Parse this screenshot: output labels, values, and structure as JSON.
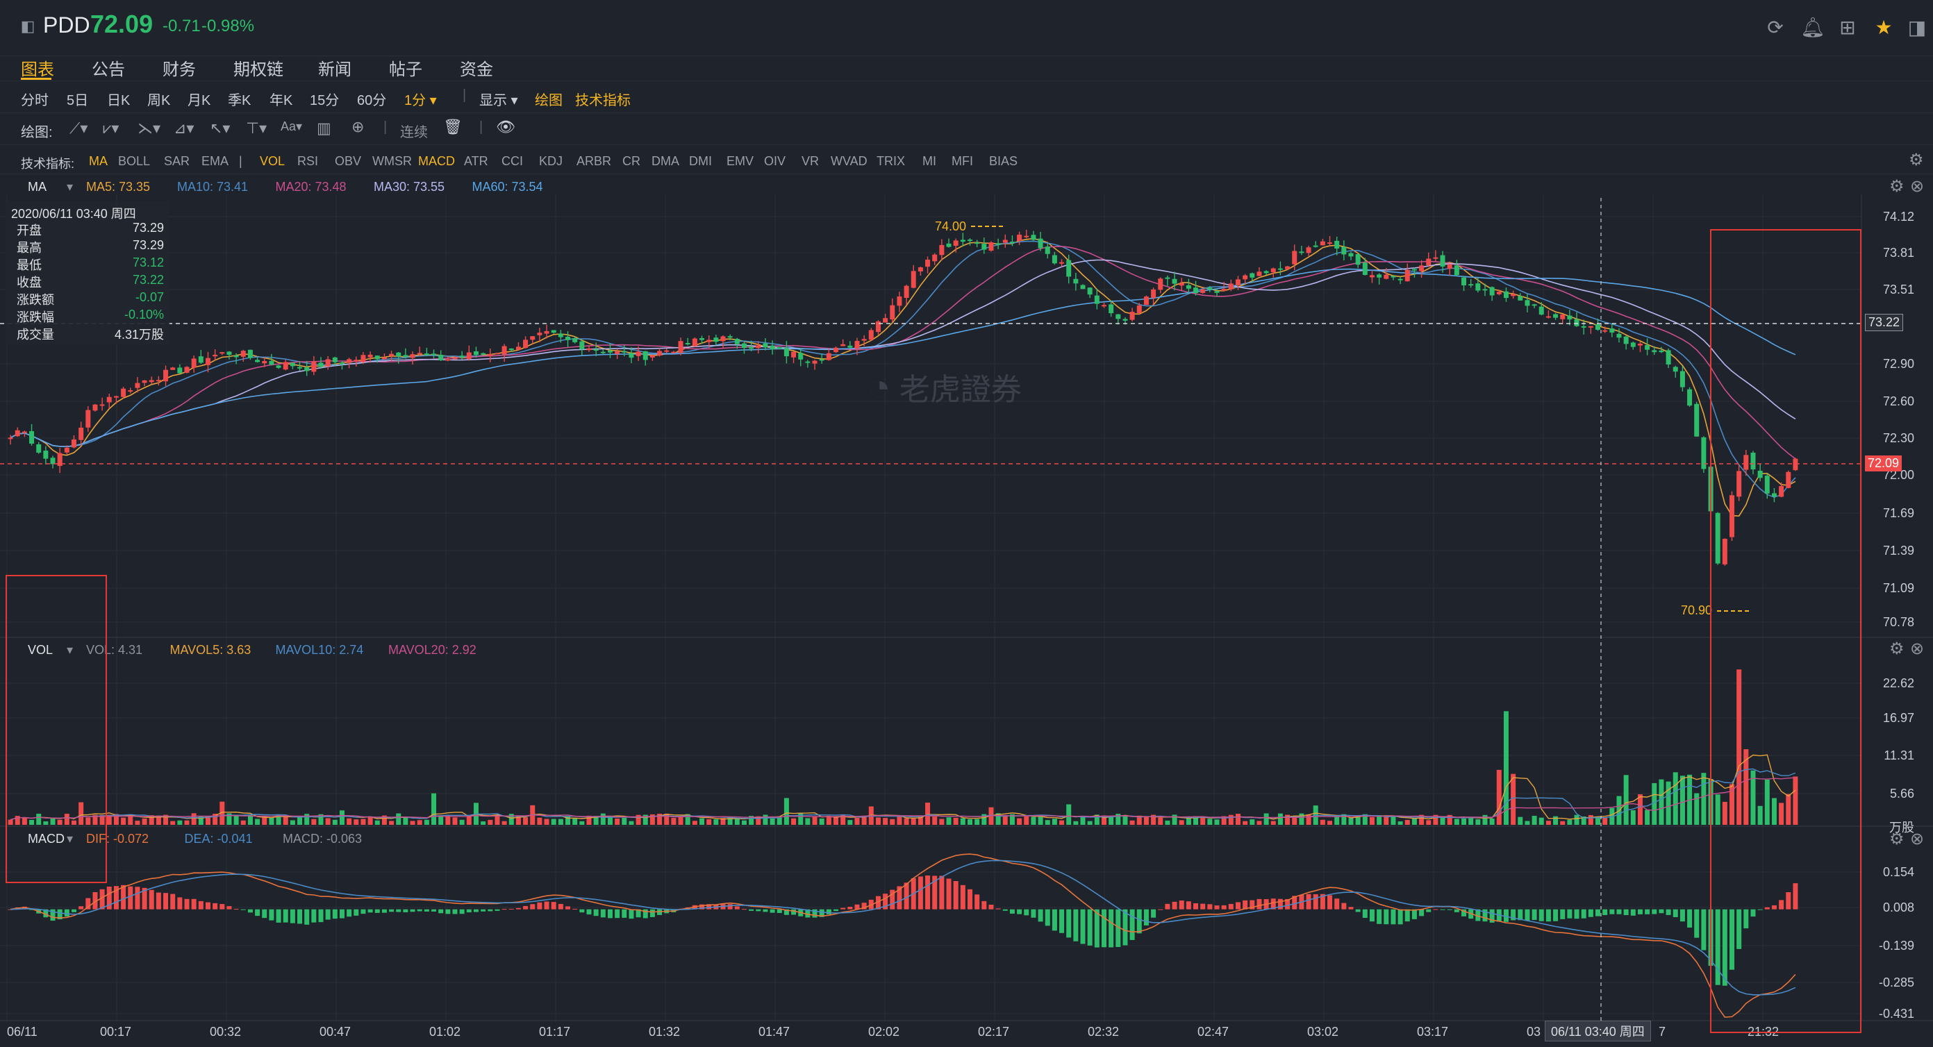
{
  "header": {
    "ticker": "PDD",
    "price": "72.09",
    "arrow": "↓",
    "change": "-0.71",
    "change_pct": "-0.98%"
  },
  "tabs": [
    "图表",
    "公告",
    "财务",
    "期权链",
    "新闻",
    "帖子",
    "资金"
  ],
  "periods": [
    "分时",
    "5日",
    "日K",
    "周K",
    "月K",
    "季K",
    "年K",
    "15分",
    "60分",
    "1分 ▾"
  ],
  "toolbar": {
    "display_label": "显示 ▾",
    "draw_label": "绘图",
    "tech_label": "技术指标",
    "drawing_prefix": "绘图:",
    "continuous_label": "连续",
    "indicators_prefix": "技术指标:"
  },
  "indicators": [
    "MA",
    "BOLL",
    "SAR",
    "EMA",
    "|",
    "VOL",
    "RSI",
    "OBV",
    "WMSR",
    "MACD",
    "ATR",
    "CCI",
    "KDJ",
    "ARBR",
    "CR",
    "DMA",
    "DMI",
    "EMV",
    "OIV",
    "VR",
    "WVAD",
    "TRIX",
    "MI",
    "MFI",
    "BIAS"
  ],
  "ma_legend": {
    "name": "MA",
    "items": [
      {
        "label": "MA5: 73.35",
        "color": "#e8a43c"
      },
      {
        "label": "MA10: 73.41",
        "color": "#4a8bc7"
      },
      {
        "label": "MA20: 73.48",
        "color": "#c94f8e"
      },
      {
        "label": "MA30: 73.55",
        "color": "#b7b8f0"
      },
      {
        "label": "MA60: 73.54",
        "color": "#5aa7e8"
      }
    ]
  },
  "vol_legend": {
    "name": "VOL",
    "items": [
      {
        "label": "VOL: 4.31",
        "color": "#8d939c"
      },
      {
        "label": "MAVOL5: 3.63",
        "color": "#e8a43c"
      },
      {
        "label": "MAVOL10: 2.74",
        "color": "#4a8bc7"
      },
      {
        "label": "MAVOL20: 2.92",
        "color": "#c94f8e"
      }
    ]
  },
  "macd_legend": {
    "name": "MACD",
    "items": [
      {
        "label": "DIF: -0.072",
        "color": "#e8743c"
      },
      {
        "label": "DEA: -0.041",
        "color": "#4a8bc7"
      },
      {
        "label": "MACD: -0.063",
        "color": "#8d939c"
      }
    ]
  },
  "infobox": {
    "date": "2020/06/11 03:40 周四",
    "rows": [
      {
        "k": "开盘",
        "v": "73.29",
        "color": "#e0e2e5"
      },
      {
        "k": "最高",
        "v": "73.29",
        "color": "#e0e2e5"
      },
      {
        "k": "最低",
        "v": "73.12",
        "color": "#2ebd6a"
      },
      {
        "k": "收盘",
        "v": "73.22",
        "color": "#2ebd6a"
      },
      {
        "k": "涨跌额",
        "v": "-0.07",
        "color": "#2ebd6a"
      },
      {
        "k": "涨跌幅",
        "v": "-0.10%",
        "color": "#2ebd6a"
      },
      {
        "k": "成交量",
        "v": "4.31万股",
        "color": "#e0e2e5"
      }
    ]
  },
  "price_axis": [
    "74.12",
    "73.81",
    "73.51",
    "73.22",
    "72.90",
    "72.60",
    "72.30",
    "72.09",
    "72.00",
    "71.69",
    "71.39",
    "71.09",
    "70.78"
  ],
  "vol_axis": [
    "22.62",
    "16.97",
    "11.31",
    "5.66",
    "万股"
  ],
  "macd_axis": [
    "0.154",
    "0.008",
    "-0.139",
    "-0.285",
    "-0.431"
  ],
  "time_axis": [
    "06/11",
    "00:17",
    "00:32",
    "00:47",
    "01:02",
    "01:17",
    "01:32",
    "01:47",
    "02:02",
    "02:17",
    "02:32",
    "02:47",
    "03:02",
    "03:17",
    "03",
    "7",
    "21:32"
  ],
  "annotations": {
    "high_label": "74.00",
    "low_label": "70.90",
    "cursor_time": "06/11 03:40 周四",
    "last_price_tag": "72.09",
    "cursor_price_tag": "73.22"
  },
  "watermark": "老虎證券",
  "colors": {
    "up": "#f04b4b",
    "down": "#2ebd6a",
    "accent": "#f5b623",
    "bg": "#1f232c"
  },
  "chart_data": {
    "type": "candlestick",
    "ylim": [
      70.78,
      74.12
    ],
    "series_close": [
      72.3,
      72.4,
      72.2,
      72.1,
      72.15,
      72.3,
      72.5,
      72.6,
      72.65,
      72.7,
      72.75,
      72.8,
      72.82,
      72.85,
      72.9,
      72.95,
      72.98,
      73.0,
      72.98,
      72.95,
      72.92,
      72.9,
      72.9,
      72.88,
      72.9,
      72.92,
      72.93,
      72.95,
      72.97,
      72.98,
      73.0,
      73.0,
      72.98,
      72.95,
      72.95,
      72.96,
      72.98,
      73.0,
      73.02,
      73.05,
      73.08,
      73.12,
      73.15,
      73.1,
      73.08,
      73.05,
      73.03,
      73.0,
      72.98,
      72.97,
      72.99,
      73.02,
      73.05,
      73.08,
      73.1,
      73.12,
      73.1,
      73.08,
      73.05,
      73.02,
      73.0,
      72.98,
      72.96,
      72.97,
      73.0,
      73.05,
      73.1,
      73.2,
      73.3,
      73.45,
      73.6,
      73.75,
      73.85,
      73.9,
      73.95,
      73.92,
      73.88,
      73.9,
      73.92,
      73.95,
      73.9,
      73.8,
      73.7,
      73.6,
      73.5,
      73.4,
      73.3,
      73.25,
      73.4,
      73.55,
      73.6,
      73.55,
      73.5,
      73.48,
      73.5,
      73.55,
      73.6,
      73.62,
      73.65,
      73.7,
      73.8,
      73.85,
      73.9,
      73.88,
      73.8,
      73.7,
      73.65,
      73.6,
      73.62,
      73.68,
      73.75,
      73.8,
      73.7,
      73.6,
      73.55,
      73.5,
      73.48,
      73.45,
      73.4,
      73.35,
      73.3,
      73.28,
      73.25,
      73.22,
      73.2,
      73.15,
      73.1,
      73.05,
      73.0,
      72.95,
      72.8,
      72.5,
      72.0,
      71.2,
      71.8,
      72.2,
      72.0,
      71.8,
      71.9,
      72.09
    ],
    "volume_unit": "万股",
    "volume_ylim": [
      0,
      22.62
    ],
    "macd_ylim": [
      -0.431,
      0.154
    ]
  }
}
